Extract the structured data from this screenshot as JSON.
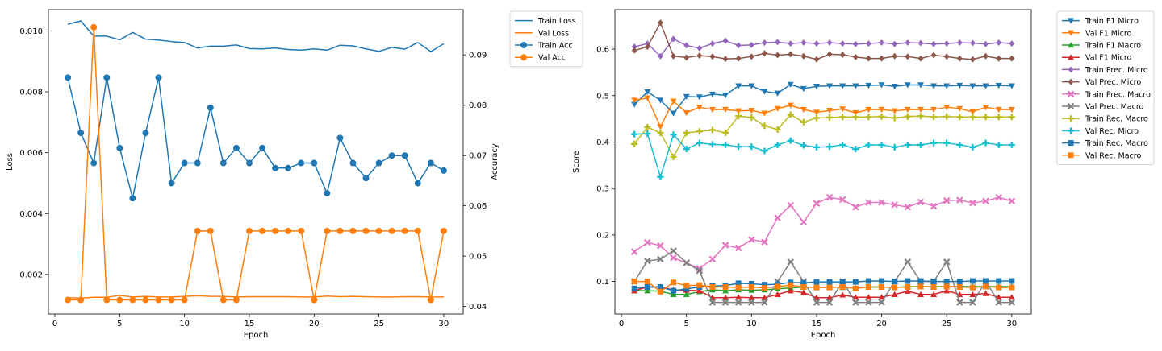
{
  "chart_data": [
    {
      "type": "line",
      "xlabel": "Epoch",
      "ylabel": "Loss",
      "y2label": "Accuracy",
      "xlim": [
        -0.5,
        31.5
      ],
      "ylim": [
        0.0007,
        0.0107
      ],
      "y2lim": [
        0.0385,
        0.099
      ],
      "xticks": [
        "0",
        "5",
        "10",
        "15",
        "20",
        "25",
        "30"
      ],
      "yticks": [
        "0.002",
        "0.004",
        "0.006",
        "0.008",
        "0.010"
      ],
      "y2ticks": [
        "0.04",
        "0.05",
        "0.06",
        "0.07",
        "0.08",
        "0.09"
      ],
      "x": [
        1,
        2,
        3,
        4,
        5,
        6,
        7,
        8,
        9,
        10,
        11,
        12,
        13,
        14,
        15,
        16,
        17,
        18,
        19,
        20,
        21,
        22,
        23,
        24,
        25,
        26,
        27,
        28,
        29,
        30
      ],
      "series": [
        {
          "name": "Train Loss",
          "axis": "left",
          "color": "#1f77b4",
          "marker": "none",
          "values": [
            0.01022,
            0.01033,
            0.00983,
            0.00983,
            0.00971,
            0.00995,
            0.00973,
            0.0097,
            0.00965,
            0.00962,
            0.00944,
            0.0095,
            0.0095,
            0.00954,
            0.00942,
            0.00941,
            0.00944,
            0.00939,
            0.00937,
            0.00941,
            0.00937,
            0.00953,
            0.00951,
            0.00941,
            0.00933,
            0.00946,
            0.0094,
            0.00962,
            0.00932,
            0.00958
          ]
        },
        {
          "name": "Val Loss",
          "axis": "left",
          "color": "#ff7f0e",
          "marker": "none",
          "values": [
            0.00124,
            0.00122,
            0.00125,
            0.00125,
            0.00131,
            0.00126,
            0.00128,
            0.00126,
            0.00126,
            0.00128,
            0.0013,
            0.00128,
            0.00128,
            0.00126,
            0.00127,
            0.00127,
            0.00127,
            0.00127,
            0.00126,
            0.00126,
            0.00129,
            0.00127,
            0.00128,
            0.00127,
            0.00126,
            0.00126,
            0.00127,
            0.00127,
            0.00126,
            0.00126
          ]
        },
        {
          "name": "Train Acc",
          "axis": "right",
          "color": "#1f77b4",
          "marker": "circle",
          "values": [
            0.0855,
            0.0745,
            0.0685,
            0.0855,
            0.0715,
            0.0615,
            0.0745,
            0.0855,
            0.0645,
            0.0685,
            0.0685,
            0.0795,
            0.0685,
            0.0715,
            0.0685,
            0.0715,
            0.0675,
            0.0675,
            0.0685,
            0.0685,
            0.0625,
            0.0735,
            0.0685,
            0.0655,
            0.0685,
            0.07,
            0.07,
            0.0645,
            0.0685,
            0.067
          ]
        },
        {
          "name": "Val Acc",
          "axis": "right",
          "color": "#ff7f0e",
          "marker": "circle",
          "values": [
            0.0413,
            0.0413,
            0.0955,
            0.0413,
            0.0413,
            0.0413,
            0.0413,
            0.0413,
            0.0413,
            0.0413,
            0.055,
            0.055,
            0.0413,
            0.0413,
            0.055,
            0.055,
            0.055,
            0.055,
            0.055,
            0.0413,
            0.055,
            0.055,
            0.055,
            0.055,
            0.055,
            0.055,
            0.055,
            0.055,
            0.0413,
            0.055
          ]
        }
      ],
      "legend_position": "outside-upper-right",
      "grid": false
    },
    {
      "type": "line",
      "xlabel": "Epoch",
      "ylabel": "Score",
      "xlim": [
        -0.5,
        31.5
      ],
      "ylim": [
        0.03,
        0.685
      ],
      "xticks": [
        "0",
        "5",
        "10",
        "15",
        "20",
        "25",
        "30"
      ],
      "yticks": [
        "0.1",
        "0.2",
        "0.3",
        "0.4",
        "0.5",
        "0.6"
      ],
      "x": [
        1,
        2,
        3,
        4,
        5,
        6,
        7,
        8,
        9,
        10,
        11,
        12,
        13,
        14,
        15,
        16,
        17,
        18,
        19,
        20,
        21,
        22,
        23,
        24,
        25,
        26,
        27,
        28,
        29,
        30
      ],
      "series": [
        {
          "name": "Train F1 Micro",
          "color": "#1f77b4",
          "marker": "triangle-down",
          "values": [
            0.481,
            0.508,
            0.49,
            0.462,
            0.498,
            0.497,
            0.503,
            0.501,
            0.521,
            0.521,
            0.509,
            0.505,
            0.524,
            0.515,
            0.52,
            0.521,
            0.521,
            0.521,
            0.522,
            0.523,
            0.52,
            0.523,
            0.523,
            0.521,
            0.521,
            0.522,
            0.521,
            0.521,
            0.522,
            0.521
          ]
        },
        {
          "name": "Val F1 Micro",
          "color": "#ff7f0e",
          "marker": "triangle-down",
          "values": [
            0.49,
            0.495,
            0.433,
            0.488,
            0.463,
            0.475,
            0.47,
            0.47,
            0.467,
            0.468,
            0.462,
            0.472,
            0.479,
            0.47,
            0.464,
            0.468,
            0.471,
            0.463,
            0.47,
            0.47,
            0.467,
            0.47,
            0.47,
            0.47,
            0.475,
            0.472,
            0.465,
            0.475,
            0.47,
            0.47
          ]
        },
        {
          "name": "Train F1 Macro",
          "color": "#2ca02c",
          "marker": "triangle-up",
          "values": [
            0.08,
            0.08,
            0.079,
            0.072,
            0.072,
            0.078,
            0.082,
            0.08,
            0.082,
            0.081,
            0.082,
            0.084,
            0.086,
            0.088,
            0.087,
            0.088,
            0.087,
            0.086,
            0.088,
            0.088,
            0.087,
            0.089,
            0.089,
            0.089,
            0.089,
            0.089,
            0.089,
            0.089,
            0.089,
            0.089
          ]
        },
        {
          "name": "Val F1 Micro",
          "color": "#d62728",
          "marker": "triangle-up",
          "values": [
            0.08,
            0.088,
            0.088,
            0.082,
            0.081,
            0.08,
            0.065,
            0.065,
            0.066,
            0.065,
            0.065,
            0.072,
            0.08,
            0.076,
            0.065,
            0.065,
            0.071,
            0.066,
            0.066,
            0.066,
            0.072,
            0.079,
            0.072,
            0.072,
            0.08,
            0.072,
            0.072,
            0.074,
            0.066,
            0.066
          ]
        },
        {
          "name": "Train Prec. Micro",
          "color": "#9467bd",
          "marker": "diamond",
          "values": [
            0.605,
            0.612,
            0.585,
            0.622,
            0.608,
            0.602,
            0.612,
            0.618,
            0.608,
            0.609,
            0.614,
            0.615,
            0.612,
            0.614,
            0.612,
            0.614,
            0.612,
            0.611,
            0.612,
            0.614,
            0.611,
            0.614,
            0.613,
            0.611,
            0.612,
            0.614,
            0.613,
            0.611,
            0.614,
            0.612
          ]
        },
        {
          "name": "Val Prec. Micro",
          "color": "#8c564b",
          "marker": "diamond",
          "values": [
            0.597,
            0.605,
            0.657,
            0.585,
            0.582,
            0.586,
            0.584,
            0.579,
            0.58,
            0.584,
            0.591,
            0.587,
            0.589,
            0.585,
            0.578,
            0.589,
            0.588,
            0.583,
            0.58,
            0.58,
            0.585,
            0.584,
            0.58,
            0.587,
            0.584,
            0.58,
            0.578,
            0.585,
            0.58,
            0.58
          ]
        },
        {
          "name": "Train Prec. Macro",
          "color": "#e377c2",
          "marker": "x",
          "values": [
            0.164,
            0.184,
            0.177,
            0.151,
            0.14,
            0.128,
            0.148,
            0.178,
            0.172,
            0.19,
            0.185,
            0.237,
            0.264,
            0.228,
            0.268,
            0.281,
            0.276,
            0.26,
            0.27,
            0.27,
            0.265,
            0.26,
            0.271,
            0.262,
            0.274,
            0.275,
            0.269,
            0.273,
            0.281,
            0.273
          ]
        },
        {
          "name": "Val Prec. Macro",
          "color": "#7f7f7f",
          "marker": "x",
          "values": [
            0.1,
            0.144,
            0.148,
            0.166,
            0.14,
            0.123,
            0.055,
            0.055,
            0.055,
            0.055,
            0.055,
            0.1,
            0.142,
            0.1,
            0.055,
            0.055,
            0.1,
            0.055,
            0.055,
            0.055,
            0.1,
            0.142,
            0.1,
            0.1,
            0.142,
            0.055,
            0.055,
            0.1,
            0.055,
            0.055
          ]
        },
        {
          "name": "Train Rec. Macro",
          "color": "#bcbd22",
          "marker": "plus",
          "values": [
            0.396,
            0.432,
            0.42,
            0.368,
            0.42,
            0.423,
            0.426,
            0.42,
            0.456,
            0.453,
            0.435,
            0.427,
            0.459,
            0.443,
            0.452,
            0.453,
            0.454,
            0.454,
            0.454,
            0.455,
            0.452,
            0.455,
            0.456,
            0.454,
            0.455,
            0.454,
            0.454,
            0.454,
            0.454,
            0.454
          ]
        },
        {
          "name": "Val Rec. Micro",
          "color": "#17becf",
          "marker": "plus",
          "values": [
            0.417,
            0.418,
            0.325,
            0.416,
            0.385,
            0.398,
            0.395,
            0.394,
            0.39,
            0.39,
            0.381,
            0.394,
            0.403,
            0.393,
            0.389,
            0.39,
            0.394,
            0.385,
            0.394,
            0.394,
            0.389,
            0.394,
            0.394,
            0.398,
            0.398,
            0.394,
            0.389,
            0.398,
            0.394,
            0.394
          ]
        },
        {
          "name": "Train Rec. Macro",
          "color": "#1f77b4",
          "marker": "square",
          "values": [
            0.085,
            0.088,
            0.088,
            0.08,
            0.084,
            0.088,
            0.09,
            0.091,
            0.096,
            0.095,
            0.093,
            0.094,
            0.098,
            0.097,
            0.099,
            0.099,
            0.099,
            0.099,
            0.101,
            0.101,
            0.1,
            0.101,
            0.101,
            0.1,
            0.1,
            0.1,
            0.101,
            0.101,
            0.101,
            0.101
          ]
        },
        {
          "name": "Val Rec. Macro",
          "color": "#ff7f0e",
          "marker": "square",
          "values": [
            0.1,
            0.1,
            0.078,
            0.098,
            0.091,
            0.092,
            0.088,
            0.088,
            0.087,
            0.088,
            0.086,
            0.089,
            0.092,
            0.088,
            0.087,
            0.087,
            0.088,
            0.085,
            0.088,
            0.088,
            0.087,
            0.088,
            0.089,
            0.088,
            0.089,
            0.088,
            0.087,
            0.089,
            0.087,
            0.087
          ]
        }
      ],
      "legend_position": "outside-upper-right",
      "grid": false
    }
  ]
}
